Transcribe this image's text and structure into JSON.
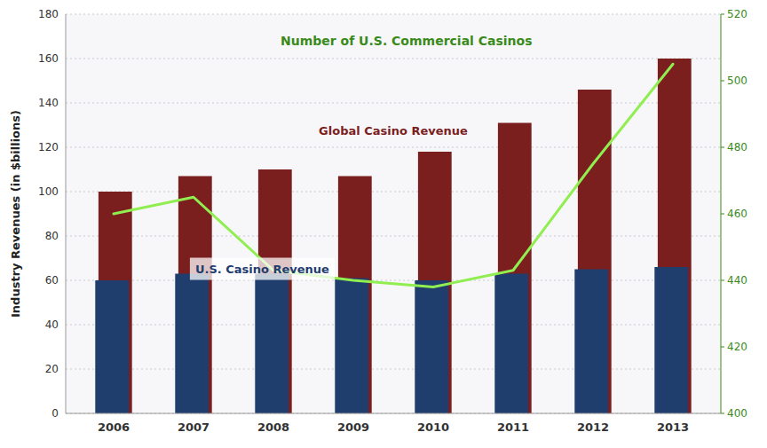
{
  "chart_data": {
    "type": "bar",
    "categories": [
      "2006",
      "2007",
      "2008",
      "2009",
      "2010",
      "2011",
      "2012",
      "2013"
    ],
    "series": [
      {
        "type": "bar",
        "color": "#7B1E1E",
        "values": [
          100,
          107,
          110,
          107,
          118,
          131,
          146,
          160
        ]
      },
      {
        "type": "bar",
        "color": "#1F3E6E",
        "values": [
          60,
          63,
          63,
          61,
          60,
          63,
          65,
          66
        ]
      },
      {
        "type": "line",
        "axis": "y2",
        "color": "#90EE50",
        "values": [
          460,
          465,
          443,
          440,
          438,
          443,
          475,
          505
        ]
      }
    ],
    "y_label": "Industry Revenues (in $billions)",
    "ylim": [
      0,
      180
    ],
    "yticks": [
      0,
      20,
      40,
      60,
      80,
      100,
      120,
      140,
      160,
      180
    ],
    "y2lim": [
      400,
      520
    ],
    "y2ticks": [
      400,
      420,
      440,
      460,
      480,
      500,
      520
    ],
    "grid": true,
    "annotations": [
      {
        "text": "Number of U.S. Commercial Casinos",
        "color": "#3A8A1A"
      },
      {
        "text": "Global Casino Revenue",
        "color": "#7B1E1E"
      },
      {
        "text": "U.S. Casino Revenue",
        "color": "#1F3E6E"
      }
    ]
  }
}
